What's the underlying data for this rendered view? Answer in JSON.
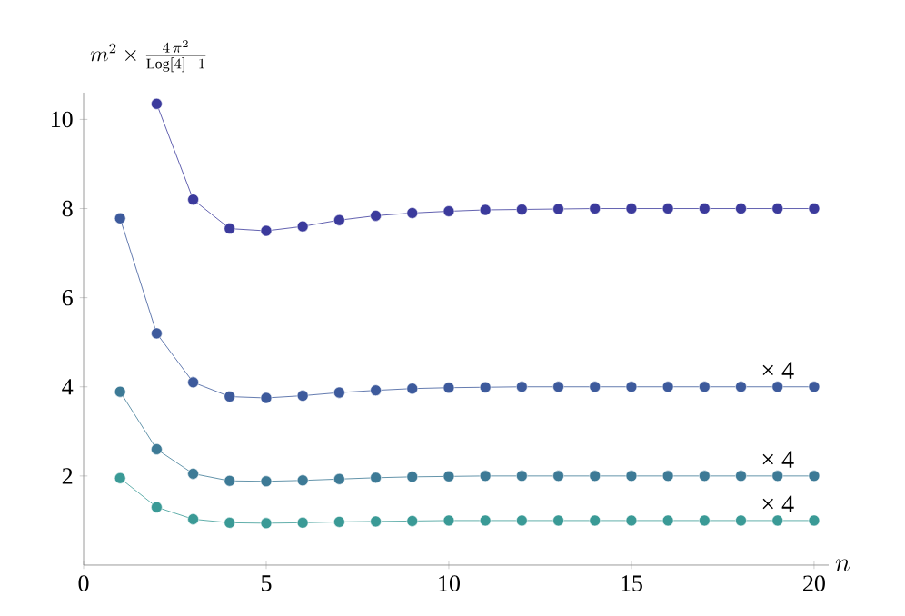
{
  "chart_data": {
    "type": "line",
    "ylabel": "m^{2}\\times\\frac{4\\,\\pi^{2}}{\\mathrm{Log}[4]-1}",
    "xlabel": "n",
    "x": [
      1,
      2,
      3,
      4,
      5,
      6,
      7,
      8,
      9,
      10,
      11,
      12,
      13,
      14,
      15,
      16,
      17,
      18,
      19,
      20
    ],
    "series": [
      {
        "color": "#3b3a9c",
        "values": [
          null,
          10.35,
          8.2,
          7.55,
          7.5,
          7.6,
          7.74,
          7.84,
          7.9,
          7.94,
          7.97,
          7.98,
          7.99,
          8,
          8,
          8,
          8,
          8,
          8,
          8
        ]
      },
      {
        "color": "#3d5a9c",
        "values": [
          7.78,
          5.2,
          4.1,
          3.78,
          3.75,
          3.8,
          3.87,
          3.92,
          3.96,
          3.98,
          3.99,
          4,
          4,
          4,
          4,
          4,
          4,
          4,
          4,
          4
        ]
      },
      {
        "color": "#3d7a96",
        "values": [
          3.89,
          2.6,
          2.05,
          1.89,
          1.88,
          1.9,
          1.93,
          1.96,
          1.98,
          1.99,
          2,
          2,
          2,
          2,
          2,
          2,
          2,
          2,
          2,
          2
        ]
      },
      {
        "color": "#3a9a96",
        "values": [
          1.95,
          1.3,
          1.03,
          0.95,
          0.94,
          0.95,
          0.97,
          0.98,
          0.99,
          1,
          1,
          1,
          1,
          1,
          1,
          1,
          1,
          1,
          1,
          1
        ]
      }
    ],
    "annotations": [
      "× 4",
      "× 4",
      "× 4"
    ],
    "xlim": [
      0,
      20.4
    ],
    "ylim": [
      0,
      10.6
    ],
    "xticks": [
      0,
      5,
      10,
      15,
      20
    ],
    "yticks": [
      2,
      4,
      6,
      8,
      10
    ],
    "marker": "circle",
    "line_style": "solid"
  }
}
